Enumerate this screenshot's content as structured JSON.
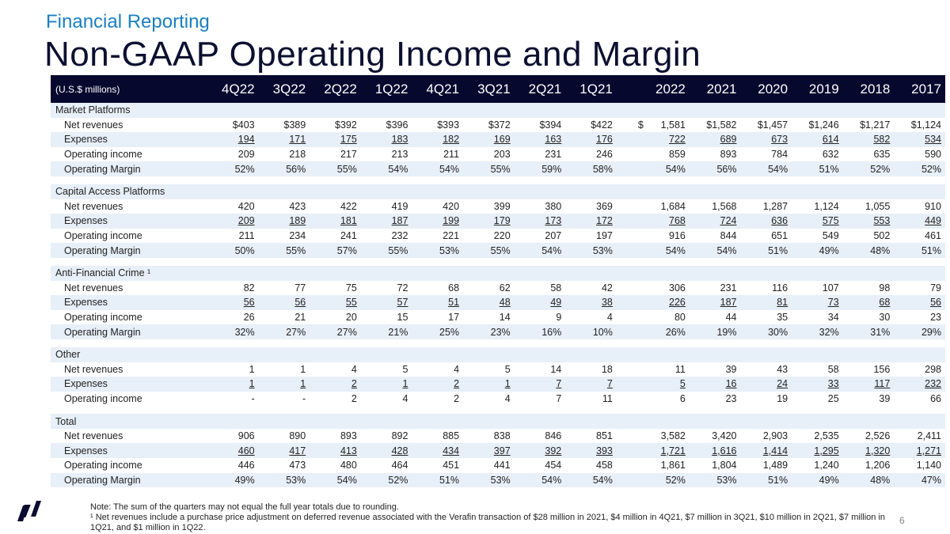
{
  "header": {
    "subtitle": "Financial Reporting",
    "title": "Non-GAAP Operating Income and Margin"
  },
  "table": {
    "unit_label": "(U.S.$ millions)",
    "columns": [
      "4Q22",
      "3Q22",
      "2Q22",
      "1Q22",
      "4Q21",
      "3Q21",
      "2Q21",
      "1Q21",
      "2022",
      "2021",
      "2020",
      "2019",
      "2018",
      "2017"
    ],
    "sections": [
      {
        "name": "Market Platforms",
        "rows": [
          {
            "label": "Net revenues",
            "values": [
              "$403",
              "$389",
              "$392",
              "$396",
              "$393",
              "$372",
              "$394",
              "$422",
              "1,581",
              "$1,582",
              "$1,457",
              "$1,246",
              "$1,217",
              "$1,124"
            ]
          },
          {
            "label": "Expenses",
            "values": [
              "194",
              "171",
              "175",
              "183",
              "182",
              "169",
              "163",
              "176",
              "722",
              "689",
              "673",
              "614",
              "582",
              "534"
            ]
          },
          {
            "label": "Operating income",
            "values": [
              "209",
              "218",
              "217",
              "213",
              "211",
              "203",
              "231",
              "246",
              "859",
              "893",
              "784",
              "632",
              "635",
              "590"
            ]
          },
          {
            "label": "Operating Margin",
            "values": [
              "52%",
              "56%",
              "55%",
              "54%",
              "54%",
              "55%",
              "59%",
              "58%",
              "54%",
              "56%",
              "54%",
              "51%",
              "52%",
              "52%"
            ]
          }
        ]
      },
      {
        "name": "Capital Access Platforms",
        "rows": [
          {
            "label": "Net revenues",
            "values": [
              "420",
              "423",
              "422",
              "419",
              "420",
              "399",
              "380",
              "369",
              "1,684",
              "1,568",
              "1,287",
              "1,124",
              "1,055",
              "910"
            ]
          },
          {
            "label": "Expenses",
            "values": [
              "209",
              "189",
              "181",
              "187",
              "199",
              "179",
              "173",
              "172",
              "768",
              "724",
              "636",
              "575",
              "553",
              "449"
            ]
          },
          {
            "label": "Operating income",
            "values": [
              "211",
              "234",
              "241",
              "232",
              "221",
              "220",
              "207",
              "197",
              "916",
              "844",
              "651",
              "549",
              "502",
              "461"
            ]
          },
          {
            "label": "Operating Margin",
            "values": [
              "50%",
              "55%",
              "57%",
              "55%",
              "53%",
              "55%",
              "54%",
              "53%",
              "54%",
              "54%",
              "51%",
              "49%",
              "48%",
              "51%"
            ]
          }
        ]
      },
      {
        "name": "Anti-Financial Crime ¹",
        "rows": [
          {
            "label": "Net revenues",
            "values": [
              "82",
              "77",
              "75",
              "72",
              "68",
              "62",
              "58",
              "42",
              "306",
              "231",
              "116",
              "107",
              "98",
              "79"
            ]
          },
          {
            "label": "Expenses",
            "values": [
              "56",
              "56",
              "55",
              "57",
              "51",
              "48",
              "49",
              "38",
              "226",
              "187",
              "81",
              "73",
              "68",
              "56"
            ]
          },
          {
            "label": "Operating income",
            "values": [
              "26",
              "21",
              "20",
              "15",
              "17",
              "14",
              "9",
              "4",
              "80",
              "44",
              "35",
              "34",
              "30",
              "23"
            ]
          },
          {
            "label": "Operating Margin",
            "values": [
              "32%",
              "27%",
              "27%",
              "21%",
              "25%",
              "23%",
              "16%",
              "10%",
              "26%",
              "19%",
              "30%",
              "32%",
              "31%",
              "29%"
            ]
          }
        ]
      },
      {
        "name": "Other",
        "rows": [
          {
            "label": "Net revenues",
            "values": [
              "1",
              "1",
              "4",
              "5",
              "4",
              "5",
              "14",
              "18",
              "11",
              "39",
              "43",
              "58",
              "156",
              "298"
            ]
          },
          {
            "label": "Expenses",
            "values": [
              "1",
              "1",
              "2",
              "1",
              "2",
              "1",
              "7",
              "7",
              "5",
              "16",
              "24",
              "33",
              "117",
              "232"
            ]
          },
          {
            "label": "Operating income",
            "values": [
              "-",
              "-",
              "2",
              "4",
              "2",
              "4",
              "7",
              "11",
              "6",
              "23",
              "19",
              "25",
              "39",
              "66"
            ]
          }
        ]
      },
      {
        "name": "Total",
        "rows": [
          {
            "label": "Net revenues",
            "values": [
              "906",
              "890",
              "893",
              "892",
              "885",
              "838",
              "846",
              "851",
              "3,582",
              "3,420",
              "2,903",
              "2,535",
              "2,526",
              "2,411"
            ]
          },
          {
            "label": "Expenses",
            "values": [
              "460",
              "417",
              "413",
              "428",
              "434",
              "397",
              "392",
              "393",
              "1,721",
              "1,616",
              "1,414",
              "1,295",
              "1,320",
              "1,271"
            ]
          },
          {
            "label": "Operating income",
            "values": [
              "446",
              "473",
              "480",
              "464",
              "451",
              "441",
              "454",
              "458",
              "1,861",
              "1,804",
              "1,489",
              "1,240",
              "1,206",
              "1,140"
            ]
          },
          {
            "label": "Operating Margin",
            "values": [
              "49%",
              "53%",
              "54%",
              "52%",
              "51%",
              "53%",
              "54%",
              "54%",
              "52%",
              "53%",
              "51%",
              "49%",
              "48%",
              "47%"
            ]
          }
        ]
      }
    ],
    "dollar_sign": "$"
  },
  "footer": {
    "note": "Note: The sum of the quarters may not equal the full year totals due to rounding.",
    "footnote": "¹ Net revenues include a purchase price adjustment on deferred revenue associated with the Verafin transaction of $28 million in 2021, $4 million in 4Q21, $7 million in 3Q21, $10 million in 2Q21, $7 million in 1Q21, and $1 million in 1Q22.",
    "page_number": "6"
  },
  "colors": {
    "header_bg": "#06082e",
    "subtitle": "#1a7fbf",
    "row_shade": "#e7eff8"
  }
}
